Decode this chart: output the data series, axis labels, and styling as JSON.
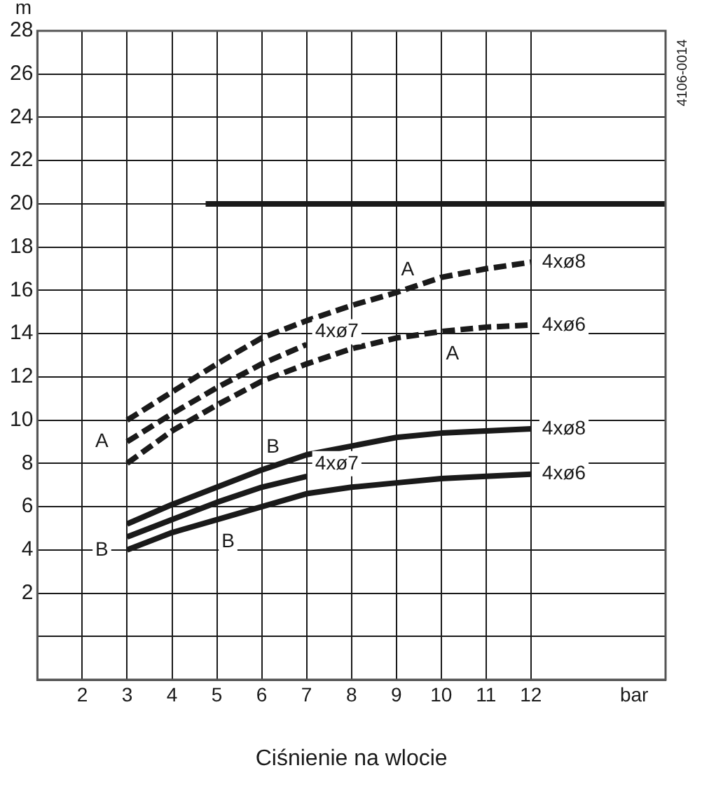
{
  "chart_data": {
    "type": "line",
    "xlabel": "Ciśnienie na wlocie",
    "ylabel": "m",
    "xlim": [
      1,
      15
    ],
    "xticks": [
      2,
      3,
      4,
      5,
      6,
      7,
      8,
      9,
      10,
      11,
      12,
      {
        "value": 14.3,
        "label": "bar"
      }
    ],
    "ylim": [
      -2,
      28
    ],
    "yticks": [
      {
        "value": 0,
        "label": null
      },
      2,
      4,
      6,
      8,
      10,
      12,
      14,
      16,
      18,
      20,
      22,
      24,
      26,
      28
    ],
    "grid": true,
    "legend": false,
    "marker": "none",
    "series": [
      {
        "color": "#1a1a1a",
        "line_style": "solid",
        "x": [
          4.75,
          15
        ],
        "values": [
          20,
          20
        ]
      },
      {
        "name": "4xø8",
        "color": "#1a1a1a",
        "line_style": "dashed",
        "x": [
          3,
          4,
          5,
          6,
          7,
          8,
          9,
          10,
          11,
          12
        ],
        "values": [
          10,
          11.3,
          12.6,
          13.8,
          14.6,
          15.3,
          15.9,
          16.6,
          17,
          17.3
        ]
      },
      {
        "name": "4xø7",
        "color": "#1a1a1a",
        "line_style": "dashed",
        "x": [
          3,
          4,
          5,
          6,
          7
        ],
        "values": [
          9,
          10.3,
          11.5,
          12.6,
          13.5
        ]
      },
      {
        "name": "4xø6",
        "color": "#1a1a1a",
        "line_style": "dashed",
        "x": [
          3,
          4,
          5,
          6,
          7,
          8,
          9,
          10,
          11,
          12
        ],
        "values": [
          8,
          9.5,
          10.7,
          11.8,
          12.6,
          13.3,
          13.8,
          14.1,
          14.3,
          14.4
        ]
      },
      {
        "name": "4xø8",
        "color": "#1a1a1a",
        "line_style": "solid",
        "x": [
          3,
          4,
          5,
          6,
          7,
          8,
          9,
          10,
          11,
          12
        ],
        "values": [
          5.2,
          6.1,
          6.9,
          7.7,
          8.4,
          8.8,
          9.2,
          9.4,
          9.5,
          9.6
        ]
      },
      {
        "name": "4xø7",
        "color": "#1a1a1a",
        "line_style": "solid",
        "x": [
          3,
          4,
          5,
          6,
          7
        ],
        "values": [
          4.6,
          5.4,
          6.2,
          6.9,
          7.4
        ]
      },
      {
        "name": "4xø6",
        "color": "#1a1a1a",
        "line_style": "solid",
        "x": [
          3,
          4,
          5,
          6,
          7,
          8,
          9,
          10,
          11,
          12
        ],
        "values": [
          4,
          4.8,
          5.4,
          6,
          6.6,
          6.9,
          7.1,
          7.3,
          7.4,
          7.5
        ]
      }
    ],
    "annotations": [
      {
        "text": "A",
        "x": 9,
        "y": 15.9
      },
      {
        "text": "A",
        "x": 3,
        "y": 9
      },
      {
        "text": "A",
        "x": 10,
        "y": 14.1
      },
      {
        "text": "B",
        "x": 6,
        "y": 7.7
      },
      {
        "text": "B",
        "x": 3,
        "y": 4
      },
      {
        "text": "B",
        "x": 5,
        "y": 5.4
      },
      "4106-0014"
    ]
  }
}
